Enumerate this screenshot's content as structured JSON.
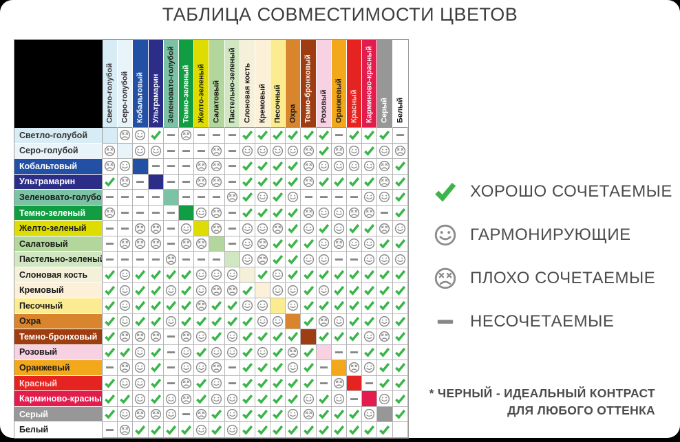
{
  "title": "ТАБЛИЦА СОВМЕСТИМОСТИ ЦВЕТОВ",
  "accent_colors": {
    "check_green": "#3bb54a",
    "face_gray": "#8c8c8c",
    "dash_gray": "#878787"
  },
  "legend": [
    {
      "symbol": "C",
      "label": "ХОРОШО СОЧЕТАЕМЫЕ"
    },
    {
      "symbol": "S",
      "label": "ГАРМОНИРУЮЩИЕ"
    },
    {
      "symbol": "X",
      "label": "ПЛОХО СОЧЕТАЕМЫЕ"
    },
    {
      "symbol": "D",
      "label": "НЕСОЧЕТАЕМЫЕ"
    }
  ],
  "footnote": {
    "line1": "* ЧЕРНЫЙ - ИДЕАЛЬНЫЙ КОНТРАСТ",
    "line2": "ДЛЯ ЛЮБОГО ОТТЕНКА"
  },
  "chart_data": {
    "type": "table",
    "title": "ТАБЛИЦА СОВМЕСТИМОСТИ ЦВЕТОВ",
    "cell_code_meaning": {
      "C": "хорошо сочетаемые",
      "S": "гармонирующие",
      "X": "плохо сочетаемые",
      "D": "несочетаемые",
      "self": "диагональ (цвет сам с собой)"
    },
    "colors": [
      {
        "name": "Светло-голубой",
        "hex": "#d8ecf6",
        "text": "#333333"
      },
      {
        "name": "Серо-голубой",
        "hex": "#e9f3fa",
        "text": "#333333"
      },
      {
        "name": "Кобальтовый",
        "hex": "#2150a5",
        "text": "#ffffff"
      },
      {
        "name": "Ультрамарин",
        "hex": "#2c2d87",
        "text": "#ffffff"
      },
      {
        "name": "Зеленовато-голубой",
        "hex": "#7cc2a5",
        "text": "#1a1a1a"
      },
      {
        "name": "Темно-зеленый",
        "hex": "#119e42",
        "text": "#ffffff"
      },
      {
        "name": "Желто-зеленый",
        "hex": "#dedc00",
        "text": "#1a1a1a"
      },
      {
        "name": "Салатовый",
        "hex": "#b2d69c",
        "text": "#1a1a1a"
      },
      {
        "name": "Пастельно-зеленый",
        "hex": "#d0e7c2",
        "text": "#1a1a1a"
      },
      {
        "name": "Слоновая кость",
        "hex": "#f4f0da",
        "text": "#1a1a1a"
      },
      {
        "name": "Кремовый",
        "hex": "#fcf0d8",
        "text": "#1a1a1a"
      },
      {
        "name": "Песочный",
        "hex": "#fbec91",
        "text": "#1a1a1a"
      },
      {
        "name": "Охра",
        "hex": "#d8852d",
        "text": "#1a1a1a"
      },
      {
        "name": "Темно-бронховый",
        "hex": "#9e3d12",
        "text": "#ffffff"
      },
      {
        "name": "Розовый",
        "hex": "#f8d2e2",
        "text": "#1a1a1a"
      },
      {
        "name": "Оранжевый",
        "hex": "#f3a81b",
        "text": "#1a1a1a"
      },
      {
        "name": "Красный",
        "hex": "#e52421",
        "text": "#ffd9d9"
      },
      {
        "name": "Карминово-красный",
        "hex": "#e21c4d",
        "text": "#ffffff"
      },
      {
        "name": "Серый",
        "hex": "#979797",
        "text": "#ffffff"
      },
      {
        "name": "Белый",
        "hex": "#ffffff",
        "text": "#1a1a1a"
      }
    ],
    "matrix": [
      [
        "self",
        "X",
        "S",
        "C",
        "D",
        "X",
        "D",
        "D",
        "D",
        "C",
        "C",
        "C",
        "C",
        "C",
        "C",
        "D",
        "C",
        "C",
        "C",
        "D"
      ],
      [
        "X",
        "self",
        "S",
        "S",
        "D",
        "D",
        "D",
        "X",
        "D",
        "S",
        "S",
        "S",
        "S",
        "X",
        "C",
        "X",
        "S",
        "C",
        "S",
        "X"
      ],
      [
        "X",
        "S",
        "self",
        "D",
        "D",
        "D",
        "X",
        "X",
        "D",
        "C",
        "C",
        "C",
        "C",
        "X",
        "S",
        "S",
        "S",
        "S",
        "X",
        "C"
      ],
      [
        "C",
        "X",
        "D",
        "self",
        "D",
        "D",
        "X",
        "X",
        "D",
        "C",
        "C",
        "C",
        "C",
        "X",
        "C",
        "C",
        "C",
        "C",
        "X",
        "C"
      ],
      [
        "D",
        "D",
        "D",
        "D",
        "self",
        "D",
        "D",
        "D",
        "X",
        "C",
        "S",
        "C",
        "S",
        "D",
        "D",
        "D",
        "D",
        "S",
        "S",
        "C"
      ],
      [
        "X",
        "D",
        "D",
        "D",
        "D",
        "self",
        "S",
        "X",
        "D",
        "C",
        "C",
        "C",
        "C",
        "X",
        "S",
        "S",
        "X",
        "X",
        "D",
        "C"
      ],
      [
        "D",
        "D",
        "X",
        "X",
        "D",
        "S",
        "self",
        "X",
        "D",
        "S",
        "S",
        "X",
        "C",
        "S",
        "C",
        "S",
        "C",
        "C",
        "X",
        "S"
      ],
      [
        "D",
        "X",
        "X",
        "X",
        "D",
        "X",
        "X",
        "self",
        "D",
        "S",
        "X",
        "C",
        "C",
        "C",
        "S",
        "X",
        "S",
        "S",
        "C",
        "C"
      ],
      [
        "D",
        "D",
        "D",
        "D",
        "X",
        "D",
        "D",
        "D",
        "self",
        "S",
        "X",
        "C",
        "C",
        "S",
        "S",
        "D",
        "D",
        "S",
        "S",
        "S"
      ],
      [
        "C",
        "S",
        "C",
        "C",
        "C",
        "C",
        "S",
        "S",
        "S",
        "self",
        "C",
        "S",
        "C",
        "C",
        "C",
        "C",
        "C",
        "C",
        "C",
        "C"
      ],
      [
        "C",
        "S",
        "C",
        "C",
        "S",
        "C",
        "S",
        "X",
        "X",
        "C",
        "self",
        "S",
        "S",
        "C",
        "S",
        "C",
        "C",
        "C",
        "C",
        "C"
      ],
      [
        "C",
        "S",
        "C",
        "C",
        "C",
        "C",
        "X",
        "C",
        "C",
        "S",
        "S",
        "self",
        "S",
        "C",
        "C",
        "C",
        "C",
        "C",
        "C",
        "C"
      ],
      [
        "C",
        "S",
        "C",
        "C",
        "S",
        "C",
        "C",
        "C",
        "C",
        "C",
        "S",
        "S",
        "self",
        "C",
        "X",
        "S",
        "C",
        "C",
        "S",
        "C"
      ],
      [
        "C",
        "X",
        "X",
        "X",
        "D",
        "X",
        "S",
        "C",
        "S",
        "C",
        "C",
        "C",
        "C",
        "self",
        "C",
        "C",
        "C",
        "S",
        "X",
        "C"
      ],
      [
        "C",
        "C",
        "S",
        "C",
        "D",
        "S",
        "C",
        "S",
        "S",
        "C",
        "S",
        "C",
        "X",
        "C",
        "self",
        "D",
        "D",
        "C",
        "C",
        "C"
      ],
      [
        "D",
        "X",
        "S",
        "C",
        "D",
        "S",
        "S",
        "X",
        "D",
        "C",
        "C",
        "C",
        "S",
        "C",
        "D",
        "self",
        "X",
        "S",
        "C",
        "C"
      ],
      [
        "C",
        "S",
        "S",
        "C",
        "D",
        "X",
        "C",
        "S",
        "D",
        "C",
        "C",
        "C",
        "C",
        "C",
        "D",
        "X",
        "self",
        "D",
        "C",
        "C"
      ],
      [
        "C",
        "C",
        "S",
        "C",
        "S",
        "X",
        "C",
        "S",
        "S",
        "C",
        "C",
        "C",
        "C",
        "S",
        "C",
        "S",
        "D",
        "self",
        "S",
        "C"
      ],
      [
        "C",
        "S",
        "X",
        "X",
        "S",
        "D",
        "X",
        "C",
        "S",
        "C",
        "C",
        "C",
        "S",
        "X",
        "C",
        "C",
        "C",
        "S",
        "self",
        "C"
      ],
      [
        "D",
        "X",
        "C",
        "C",
        "C",
        "C",
        "S",
        "C",
        "S",
        "C",
        "C",
        "C",
        "C",
        "C",
        "C",
        "C",
        "C",
        "C",
        "C",
        "self"
      ]
    ]
  }
}
